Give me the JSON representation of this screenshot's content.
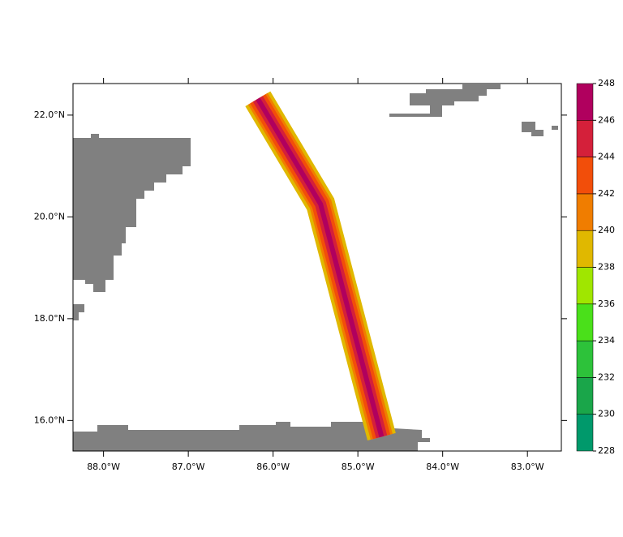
{
  "chart_data": {
    "type": "map",
    "xlim": [
      -88.36,
      -82.6
    ],
    "ylim": [
      15.4,
      22.62
    ],
    "xticks": [
      {
        "value": -88,
        "label": "88.0°W"
      },
      {
        "value": -87,
        "label": "87.0°W"
      },
      {
        "value": -86,
        "label": "86.0°W"
      },
      {
        "value": -85,
        "label": "85.0°W"
      },
      {
        "value": -84,
        "label": "84.0°W"
      },
      {
        "value": -83,
        "label": "83.0°W"
      }
    ],
    "yticks": [
      {
        "value": 16,
        "label": "16.0°N"
      },
      {
        "value": 18,
        "label": "18.0°N"
      },
      {
        "value": 20,
        "label": "20.0°N"
      },
      {
        "value": 22,
        "label": "22.0°N"
      }
    ],
    "track": {
      "lon": [
        -86.18,
        -85.44,
        -84.72
      ],
      "lat": [
        22.32,
        20.25,
        15.68
      ]
    },
    "colorbar": {
      "levels": [
        228,
        230,
        232,
        234,
        236,
        238,
        240,
        242,
        244,
        246,
        248
      ],
      "colors": [
        "#00996b",
        "#1aa64a",
        "#2dc23a",
        "#4ae01a",
        "#a0e600",
        "#e0b800",
        "#f07d00",
        "#f24e0a",
        "#d4203a",
        "#b0005e"
      ]
    }
  }
}
